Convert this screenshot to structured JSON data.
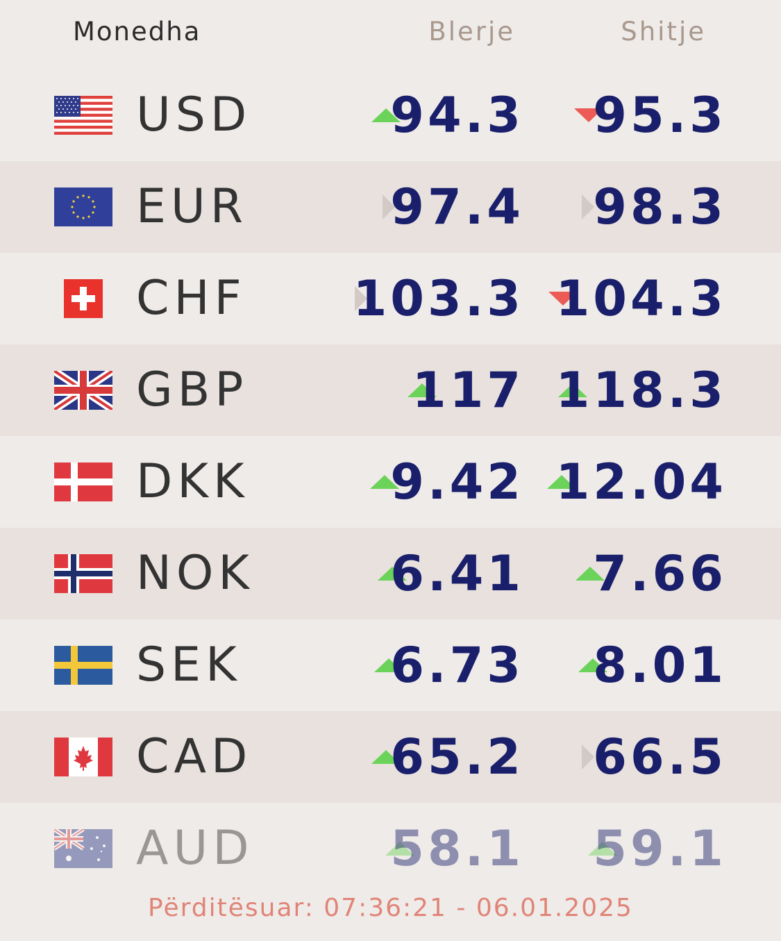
{
  "header": {
    "currency_label": "Monedha",
    "buy_label": "Blerje",
    "sell_label": "Shitje"
  },
  "colors": {
    "up": "#6cd35a",
    "down": "#ec5b55",
    "flat": "#d3cac5",
    "value": "#1a1f6b",
    "updated": "#e08478"
  },
  "rows": [
    {
      "code": "USD",
      "flag": "us-flag-icon",
      "buy": "94.3",
      "buy_trend": "up",
      "sell": "95.3",
      "sell_trend": "down"
    },
    {
      "code": "EUR",
      "flag": "eu-flag-icon",
      "buy": "97.4",
      "buy_trend": "flat",
      "sell": "98.3",
      "sell_trend": "flat"
    },
    {
      "code": "CHF",
      "flag": "ch-flag-icon",
      "buy": "103.3",
      "buy_trend": "flat",
      "sell": "104.3",
      "sell_trend": "down"
    },
    {
      "code": "GBP",
      "flag": "gb-flag-icon",
      "buy": "117",
      "buy_trend": "up",
      "sell": "118.3",
      "sell_trend": "up"
    },
    {
      "code": "DKK",
      "flag": "dk-flag-icon",
      "buy": "9.42",
      "buy_trend": "up",
      "sell": "12.04",
      "sell_trend": "up"
    },
    {
      "code": "NOK",
      "flag": "no-flag-icon",
      "buy": "6.41",
      "buy_trend": "up",
      "sell": "7.66",
      "sell_trend": "up"
    },
    {
      "code": "SEK",
      "flag": "se-flag-icon",
      "buy": "6.73",
      "buy_trend": "up",
      "sell": "8.01",
      "sell_trend": "up"
    },
    {
      "code": "CAD",
      "flag": "ca-flag-icon",
      "buy": "65.2",
      "buy_trend": "up",
      "sell": "66.5",
      "sell_trend": "flat"
    },
    {
      "code": "AUD",
      "flag": "au-flag-icon",
      "buy": "58.1",
      "buy_trend": "up",
      "sell": "59.1",
      "sell_trend": "up"
    }
  ],
  "updated_text": "Përditësuar: 07:36:21 - 06.01.2025"
}
